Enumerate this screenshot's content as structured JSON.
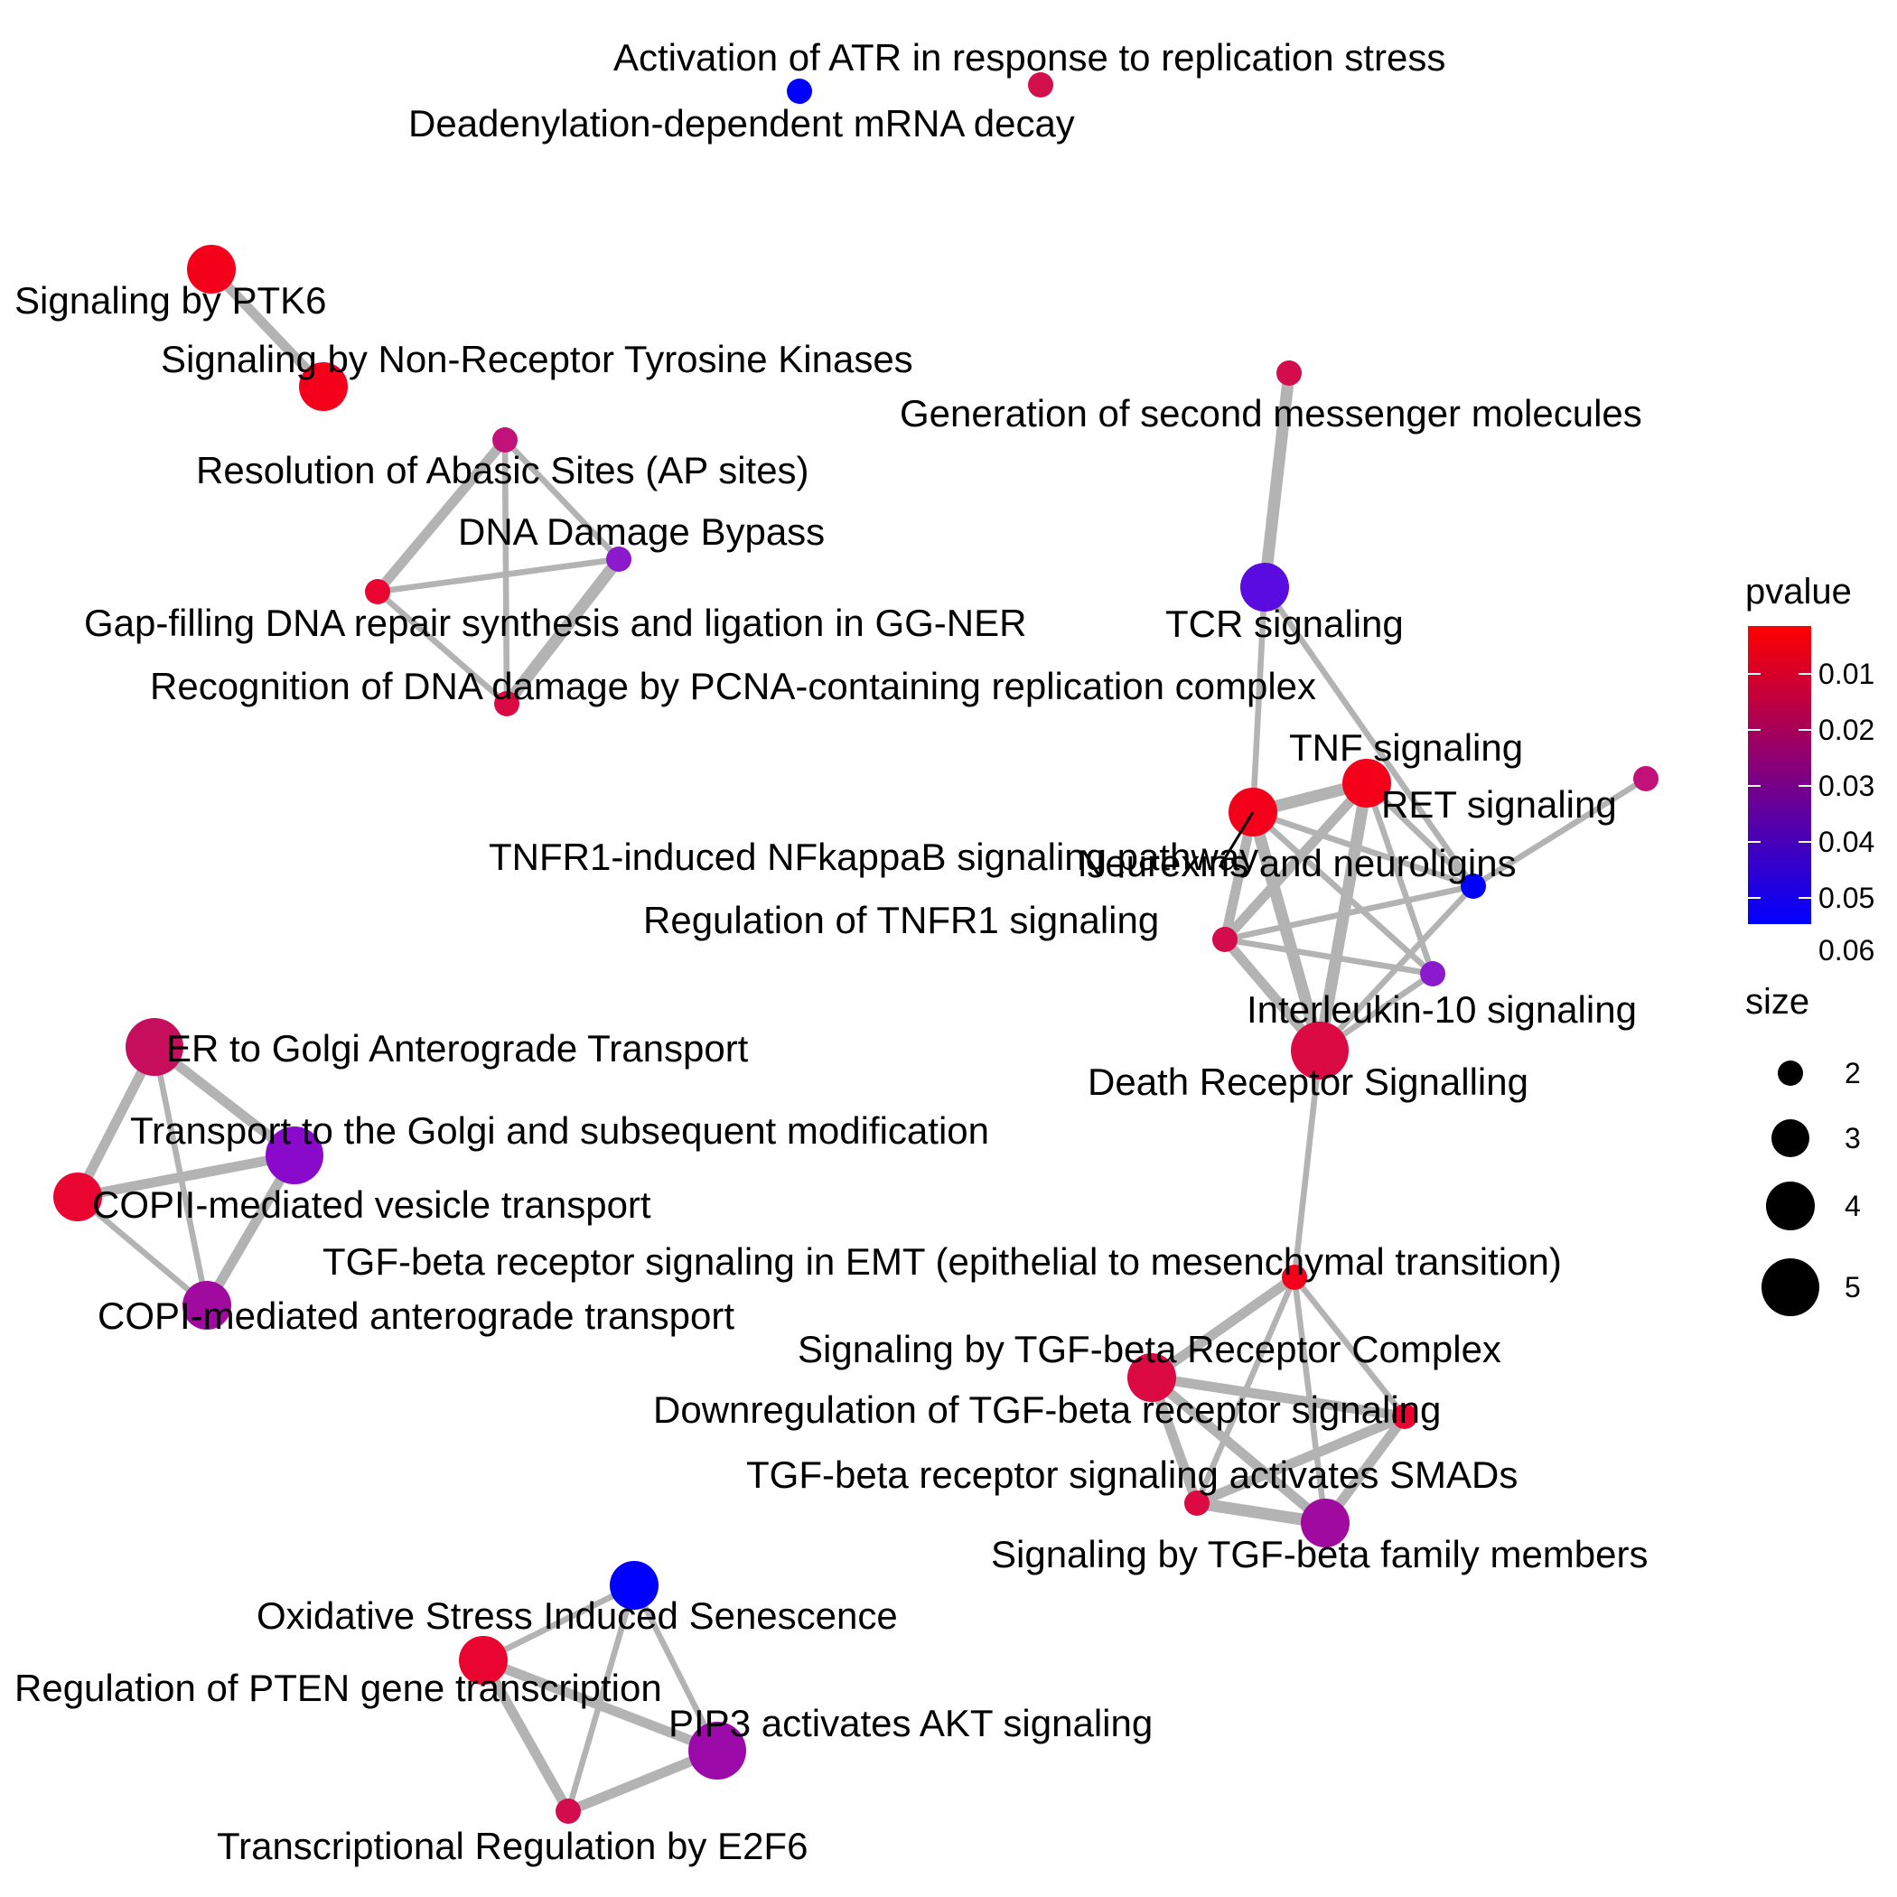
{
  "diagram": {
    "nodes": [
      {
        "id": "atr",
        "label": "Activation of ATR in response to replication stress",
        "color": "#0000FF",
        "size": 2
      },
      {
        "id": "deadenyl",
        "label": "Deadenylation-dependent mRNA decay",
        "color": "#D1104D",
        "size": 2
      },
      {
        "id": "ptk6",
        "label": "Signaling by PTK6",
        "color": "#F5001B",
        "size": 4
      },
      {
        "id": "nrtk",
        "label": "Signaling by Non-Receptor Tyrosine Kinases",
        "color": "#F5001B",
        "size": 4
      },
      {
        "id": "abasic",
        "label": "Resolution of Abasic Sites (AP sites)",
        "color": "#C2127A",
        "size": 2
      },
      {
        "id": "dnabypass",
        "label": "DNA Damage Bypass",
        "color": "#8A1ACB",
        "size": 2
      },
      {
        "id": "gapfill",
        "label": "Gap-filling DNA repair synthesis and ligation in GG-NER",
        "color": "#EA0530",
        "size": 2
      },
      {
        "id": "pcna",
        "label": "Recognition of DNA damage by PCNA-containing replication complex",
        "color": "#DC0A42",
        "size": 2
      },
      {
        "id": "secmsg",
        "label": "Generation of second messenger molecules",
        "color": "#D30D4D",
        "size": 2
      },
      {
        "id": "tcr",
        "label": "TCR signaling",
        "color": "#5A0BE0",
        "size": 4
      },
      {
        "id": "tnf",
        "label": "TNF signaling",
        "color": "#F5001B",
        "size": 4
      },
      {
        "id": "ret",
        "label": "RET signaling",
        "color": "#C2127A",
        "size": 2
      },
      {
        "id": "tnfr1nfkb",
        "label": "TNFR1-induced NFkappaB signaling pathway",
        "color": "#F5001B",
        "size": 4
      },
      {
        "id": "neurexin",
        "label": "Neurexins and neuroligins",
        "color": "#0000FF",
        "size": 2
      },
      {
        "id": "regtnfr1",
        "label": "Regulation of TNFR1 signaling",
        "color": "#D30D4D",
        "size": 2
      },
      {
        "id": "il10",
        "label": "Interleukin-10 signaling",
        "color": "#8A1ACB",
        "size": 2
      },
      {
        "id": "deathrec",
        "label": "Death Receptor Signalling",
        "color": "#DC0A42",
        "size": 5
      },
      {
        "id": "ergolgi",
        "label": "ER to Golgi Anterograde Transport",
        "color": "#C70E5C",
        "size": 5
      },
      {
        "id": "transgolgi",
        "label": "Transport to the Golgi and subsequent modification",
        "color": "#8A0ACB",
        "size": 5
      },
      {
        "id": "copii",
        "label": "COPII-mediated vesicle transport",
        "color": "#EA0530",
        "size": 4
      },
      {
        "id": "copi",
        "label": "COPI-mediated anterograde transport",
        "color": "#A00A9E",
        "size": 4
      },
      {
        "id": "tgfemt",
        "label": "TGF-beta receptor signaling in EMT (epithelial to mesenchymal transition)",
        "color": "#F5001B",
        "size": 2
      },
      {
        "id": "tgfcomplex",
        "label": "Signaling by TGF-beta Receptor Complex",
        "color": "#DC0A42",
        "size": 4
      },
      {
        "id": "downtgf",
        "label": "Downregulation of TGF-beta receptor signaling",
        "color": "#EA0530",
        "size": 2
      },
      {
        "id": "tgfsmad",
        "label": "TGF-beta receptor signaling activates SMADs",
        "color": "#DC0A42",
        "size": 2
      },
      {
        "id": "tgffamily",
        "label": "Signaling by TGF-beta family members",
        "color": "#A00A9E",
        "size": 4
      },
      {
        "id": "oxstress",
        "label": "Oxidative Stress Induced Senescence",
        "color": "#0000FF",
        "size": 4
      },
      {
        "id": "pten",
        "label": "Regulation of PTEN gene transcription",
        "color": "#EA0530",
        "size": 4
      },
      {
        "id": "pip3",
        "label": "PIP3 activates AKT signaling",
        "color": "#9B0AA8",
        "size": 5
      },
      {
        "id": "e2f6",
        "label": "Transcriptional Regulation by E2F6",
        "color": "#D30D4D",
        "size": 2
      }
    ],
    "edges": [
      {
        "source": "ptk6",
        "target": "nrtk",
        "weight": 5
      },
      {
        "source": "abasic",
        "target": "dnabypass",
        "weight": 3
      },
      {
        "source": "abasic",
        "target": "gapfill",
        "weight": 5
      },
      {
        "source": "abasic",
        "target": "pcna",
        "weight": 3
      },
      {
        "source": "gapfill",
        "target": "dnabypass",
        "weight": 3
      },
      {
        "source": "gapfill",
        "target": "pcna",
        "weight": 3
      },
      {
        "source": "dnabypass",
        "target": "pcna",
        "weight": 6
      },
      {
        "source": "secmsg",
        "target": "tcr",
        "weight": 6
      },
      {
        "source": "tcr",
        "target": "tnfr1nfkb",
        "weight": 3
      },
      {
        "source": "tcr",
        "target": "neurexin",
        "weight": 3
      },
      {
        "source": "tnfr1nfkb",
        "target": "tnf",
        "weight": 6
      },
      {
        "source": "tnfr1nfkb",
        "target": "regtnfr1",
        "weight": 5
      },
      {
        "source": "tnfr1nfkb",
        "target": "deathrec",
        "weight": 6
      },
      {
        "source": "tnfr1nfkb",
        "target": "il10",
        "weight": 3
      },
      {
        "source": "tnfr1nfkb",
        "target": "neurexin",
        "weight": 3
      },
      {
        "source": "tnf",
        "target": "regtnfr1",
        "weight": 5
      },
      {
        "source": "tnf",
        "target": "deathrec",
        "weight": 6
      },
      {
        "source": "tnf",
        "target": "il10",
        "weight": 3
      },
      {
        "source": "tnf",
        "target": "neurexin",
        "weight": 3
      },
      {
        "source": "ret",
        "target": "neurexin",
        "weight": 3
      },
      {
        "source": "neurexin",
        "target": "regtnfr1",
        "weight": 3
      },
      {
        "source": "neurexin",
        "target": "deathrec",
        "weight": 3
      },
      {
        "source": "regtnfr1",
        "target": "il10",
        "weight": 3
      },
      {
        "source": "regtnfr1",
        "target": "deathrec",
        "weight": 5
      },
      {
        "source": "il10",
        "target": "deathrec",
        "weight": 3
      },
      {
        "source": "deathrec",
        "target": "tgfemt",
        "weight": 3
      },
      {
        "source": "ergolgi",
        "target": "transgolgi",
        "weight": 5
      },
      {
        "source": "ergolgi",
        "target": "copii",
        "weight": 5
      },
      {
        "source": "ergolgi",
        "target": "copi",
        "weight": 3
      },
      {
        "source": "copii",
        "target": "transgolgi",
        "weight": 5
      },
      {
        "source": "copii",
        "target": "copi",
        "weight": 3
      },
      {
        "source": "transgolgi",
        "target": "copi",
        "weight": 5
      },
      {
        "source": "tgfemt",
        "target": "tgfcomplex",
        "weight": 5
      },
      {
        "source": "tgfemt",
        "target": "downtgf",
        "weight": 3
      },
      {
        "source": "tgfemt",
        "target": "tgfsmad",
        "weight": 3
      },
      {
        "source": "tgfemt",
        "target": "tgffamily",
        "weight": 3
      },
      {
        "source": "tgfcomplex",
        "target": "downtgf",
        "weight": 5
      },
      {
        "source": "tgfcomplex",
        "target": "tgfsmad",
        "weight": 5
      },
      {
        "source": "tgfcomplex",
        "target": "tgffamily",
        "weight": 5
      },
      {
        "source": "downtgf",
        "target": "tgfsmad",
        "weight": 5
      },
      {
        "source": "downtgf",
        "target": "tgffamily",
        "weight": 5
      },
      {
        "source": "tgfsmad",
        "target": "tgffamily",
        "weight": 6
      },
      {
        "source": "oxstress",
        "target": "pten",
        "weight": 3
      },
      {
        "source": "oxstress",
        "target": "pip3",
        "weight": 3
      },
      {
        "source": "oxstress",
        "target": "e2f6",
        "weight": 3
      },
      {
        "source": "pten",
        "target": "pip3",
        "weight": 5
      },
      {
        "source": "pten",
        "target": "e2f6",
        "weight": 5
      },
      {
        "source": "pip3",
        "target": "e2f6",
        "weight": 5
      }
    ]
  },
  "legend": {
    "color_title": "pvalue",
    "color_ticks": [
      "0.01",
      "0.02",
      "0.03",
      "0.04",
      "0.05",
      "0.06"
    ],
    "color_low": "#FF0000",
    "color_high": "#0000FF",
    "size_title": "size",
    "size_ticks": [
      "2",
      "3",
      "4",
      "5"
    ]
  }
}
